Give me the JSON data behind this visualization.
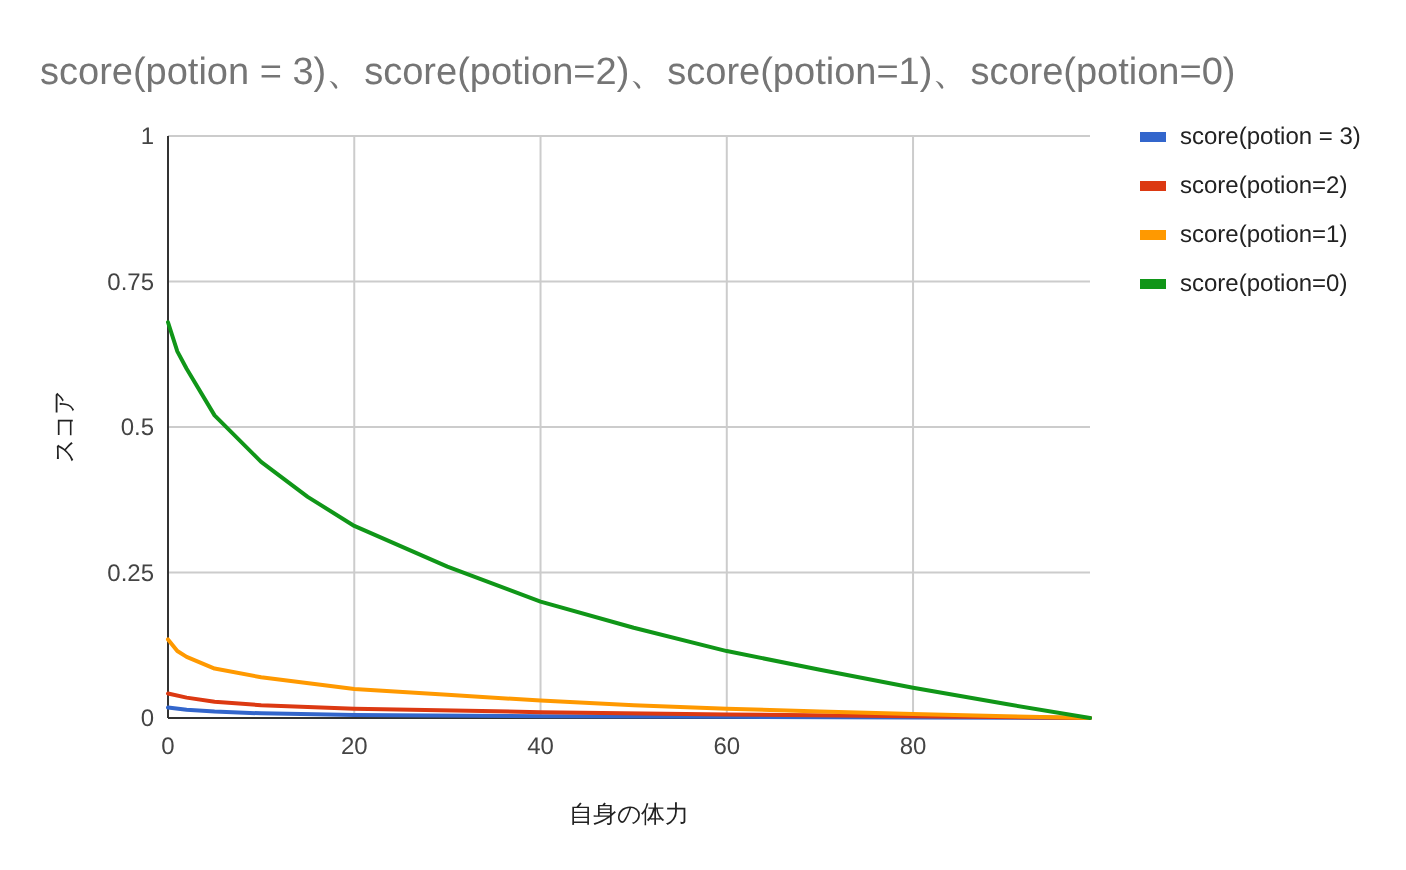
{
  "chart_data": {
    "type": "line",
    "title": "score(potion = 3)、score(potion=2)、score(potion=1)、score(potion=0)",
    "xlabel": "自身の体力",
    "ylabel": "スコア",
    "xlim": [
      0,
      99
    ],
    "xticks": [
      0,
      20,
      40,
      60,
      80
    ],
    "ylim": [
      0,
      1
    ],
    "yticks": [
      0,
      0.25,
      0.5,
      0.75,
      1
    ],
    "grid": true,
    "legend": "right",
    "marker": "none",
    "line_style": "solid",
    "series": [
      {
        "name": "score(potion = 3)",
        "color": "#3366cc",
        "x": [
          0,
          2,
          5,
          10,
          20,
          40,
          60,
          80,
          99
        ],
        "values": [
          0.018,
          0.014,
          0.011,
          0.008,
          0.005,
          0.003,
          0.002,
          0.001,
          0
        ]
      },
      {
        "name": "score(potion=2)",
        "color": "#dc3912",
        "x": [
          0,
          2,
          5,
          10,
          20,
          40,
          60,
          80,
          99
        ],
        "values": [
          0.042,
          0.035,
          0.028,
          0.022,
          0.016,
          0.01,
          0.006,
          0.003,
          0
        ]
      },
      {
        "name": "score(potion=1)",
        "color": "#ff9900",
        "x": [
          0,
          1,
          2,
          5,
          10,
          20,
          30,
          40,
          50,
          60,
          70,
          80,
          90,
          99
        ],
        "values": [
          0.135,
          0.115,
          0.105,
          0.085,
          0.07,
          0.05,
          0.04,
          0.03,
          0.022,
          0.016,
          0.011,
          0.007,
          0.003,
          0
        ]
      },
      {
        "name": "score(potion=0)",
        "color": "#109618",
        "x": [
          0,
          1,
          2,
          5,
          10,
          15,
          20,
          30,
          40,
          50,
          60,
          70,
          80,
          90,
          99
        ],
        "values": [
          0.68,
          0.63,
          0.6,
          0.52,
          0.44,
          0.38,
          0.33,
          0.26,
          0.2,
          0.155,
          0.115,
          0.083,
          0.052,
          0.024,
          0
        ]
      }
    ]
  }
}
